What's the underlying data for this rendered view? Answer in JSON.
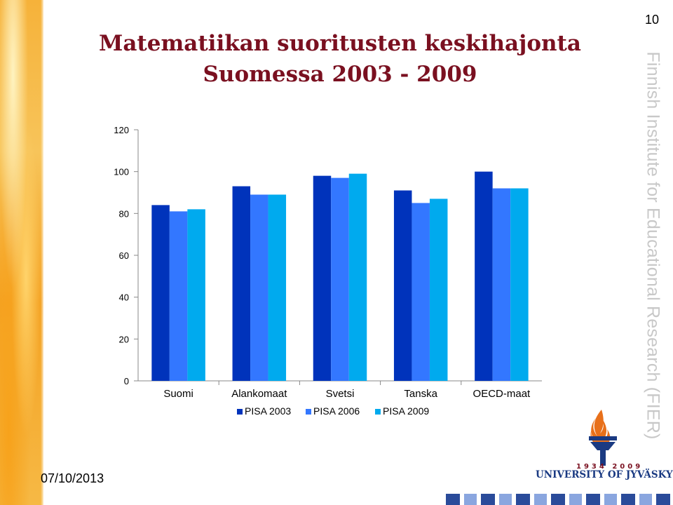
{
  "slide": {
    "title_line_1": "Matematiikan suoritusten keskihajonta",
    "title_line_2": "Suomessa 2003 - 2009",
    "page_number": "10",
    "side_text": "Finnish Institute for Educational Research (FIER)",
    "date": "07/10/2013"
  },
  "logo": {
    "years": "1934  2009",
    "name": "UNIVERSITY OF JYVÄSKYLÄ"
  },
  "colors": {
    "title": "#7a1020",
    "series": [
      "#0033bb",
      "#3377ff",
      "#00aaee"
    ]
  },
  "chart_data": {
    "type": "bar",
    "categories": [
      "Suomi",
      "Alankomaat",
      "Svetsi",
      "Tanska",
      "OECD-maat"
    ],
    "series": [
      {
        "name": "PISA 2003",
        "values": [
          84,
          93,
          98,
          91,
          100
        ]
      },
      {
        "name": "PISA 2006",
        "values": [
          81,
          89,
          97,
          85,
          92
        ]
      },
      {
        "name": "PISA 2009",
        "values": [
          82,
          89,
          99,
          87,
          92
        ]
      }
    ],
    "ylim": [
      0,
      120
    ],
    "yticks": [
      0,
      20,
      40,
      60,
      80,
      100,
      120
    ],
    "grid": false,
    "legend": "bottom"
  }
}
